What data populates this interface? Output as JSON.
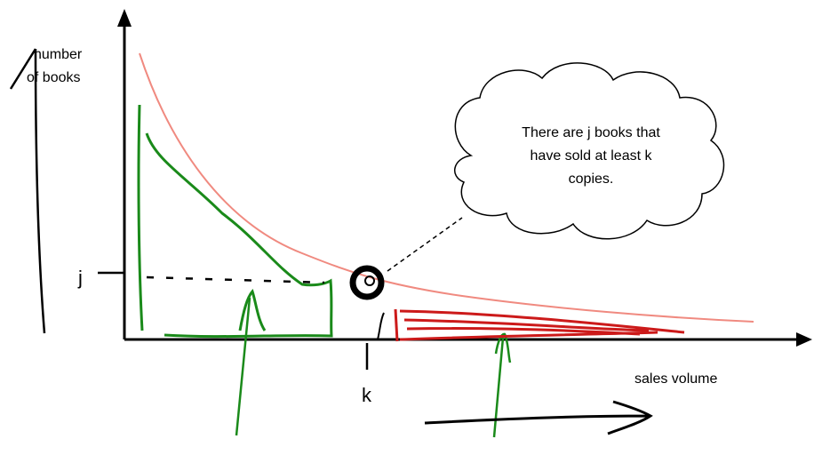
{
  "axes": {
    "y_label": [
      "number",
      "of books"
    ],
    "x_label": "sales volume",
    "j_label": "j",
    "k_label": "k"
  },
  "callout": {
    "lines": [
      "There are j books that",
      "have sold at least k",
      "copies."
    ]
  }
}
